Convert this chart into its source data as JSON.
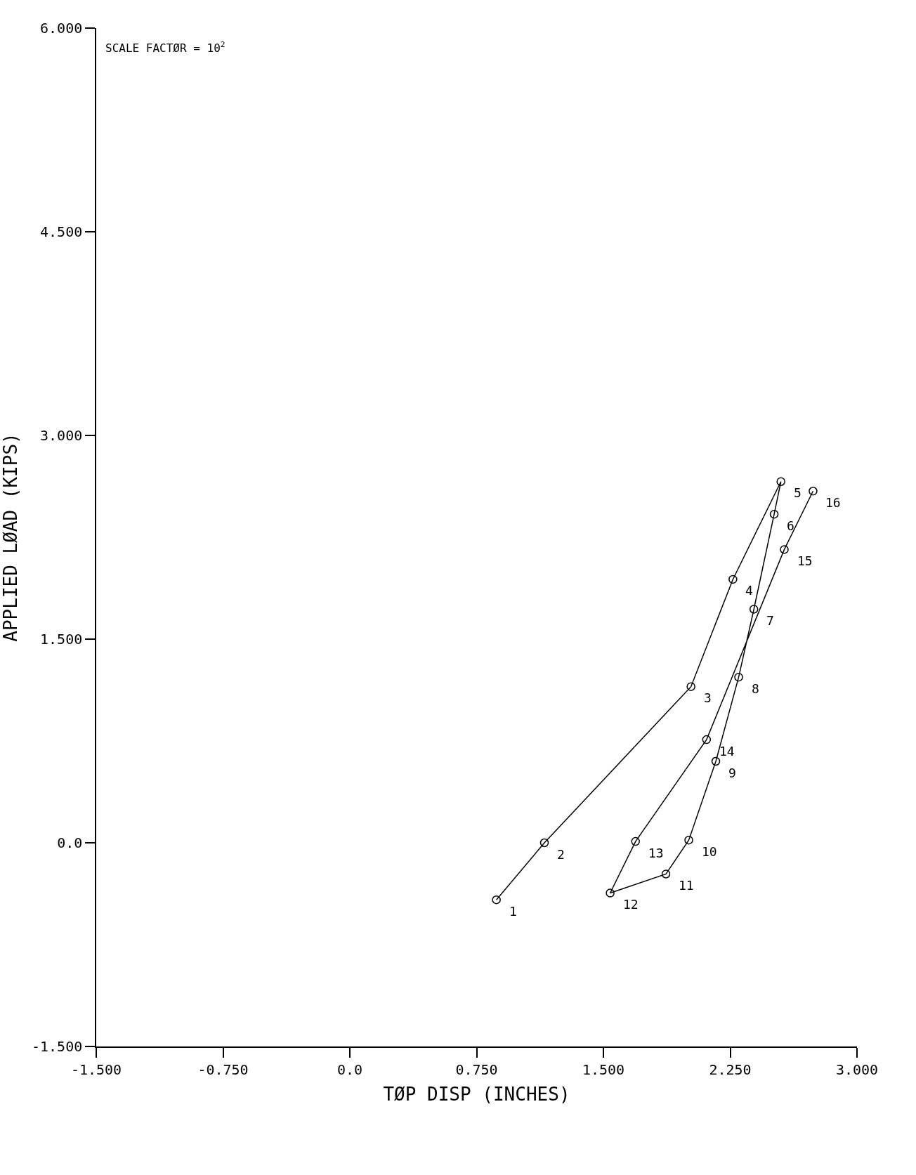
{
  "chart_data": {
    "type": "line",
    "xlabel": "TØP DISP (INCHES)",
    "ylabel": "APPLIED LØAD (KIPS)",
    "x": [
      0.867,
      1.151,
      2.018,
      2.266,
      2.55,
      2.51,
      2.39,
      2.3,
      2.165,
      2.005,
      1.87,
      1.54,
      1.69,
      2.11,
      2.57,
      2.74
    ],
    "series": [
      {
        "color": "#000000",
        "values": [
          -0.42,
          0.0,
          1.15,
          1.94,
          2.66,
          2.42,
          1.72,
          1.22,
          0.6,
          0.02,
          -0.23,
          -0.37,
          0.01,
          0.76,
          2.16,
          2.59
        ]
      }
    ],
    "xlim": [
      -1.5,
      3.0
    ],
    "xticks": [
      {
        "value": -1.5,
        "label": "-1.500"
      },
      {
        "value": -0.75,
        "label": "-0.750"
      },
      {
        "value": 0,
        "label": "0.0"
      },
      {
        "value": 0.75,
        "label": "0.750"
      },
      {
        "value": 1.5,
        "label": "1.500"
      },
      {
        "value": 2.25,
        "label": "2.250"
      },
      {
        "value": 3.0,
        "label": "3.000"
      }
    ],
    "ylim": [
      -1.5,
      6.0
    ],
    "yticks": [
      {
        "value": -1.5,
        "label": "-1.500"
      },
      {
        "value": 0,
        "label": "0.0"
      },
      {
        "value": 1.5,
        "label": "1.500"
      },
      {
        "value": 3.0,
        "label": "3.000"
      },
      {
        "value": 4.5,
        "label": "4.500"
      },
      {
        "value": 6.0,
        "label": "6.000"
      }
    ],
    "marker": "circle",
    "line_style": "solid",
    "legend": false,
    "annotations": [
      {
        "text": "1",
        "x": 0.867,
        "y": -0.42
      },
      {
        "text": "2",
        "x": 1.151,
        "y": 0.0
      },
      {
        "text": "3",
        "x": 2.018,
        "y": 1.15
      },
      {
        "text": "4",
        "x": 2.266,
        "y": 1.94
      },
      {
        "text": "5",
        "x": 2.55,
        "y": 2.66
      },
      {
        "text": "6",
        "x": 2.51,
        "y": 2.42
      },
      {
        "text": "7",
        "x": 2.39,
        "y": 1.72
      },
      {
        "text": "8",
        "x": 2.3,
        "y": 1.22
      },
      {
        "text": "9",
        "x": 2.165,
        "y": 0.6
      },
      {
        "text": "10",
        "x": 2.005,
        "y": 0.02
      },
      {
        "text": "11",
        "x": 1.87,
        "y": -0.23
      },
      {
        "text": "12",
        "x": 1.54,
        "y": -0.37
      },
      {
        "text": "13",
        "x": 1.69,
        "y": 0.01
      },
      {
        "text": "14",
        "x": 2.11,
        "y": 0.76
      },
      {
        "text": "15",
        "x": 2.57,
        "y": 2.16
      },
      {
        "text": "16",
        "x": 2.74,
        "y": 2.59
      },
      "SCALE FACTØR = 10$^{2}$"
    ]
  }
}
